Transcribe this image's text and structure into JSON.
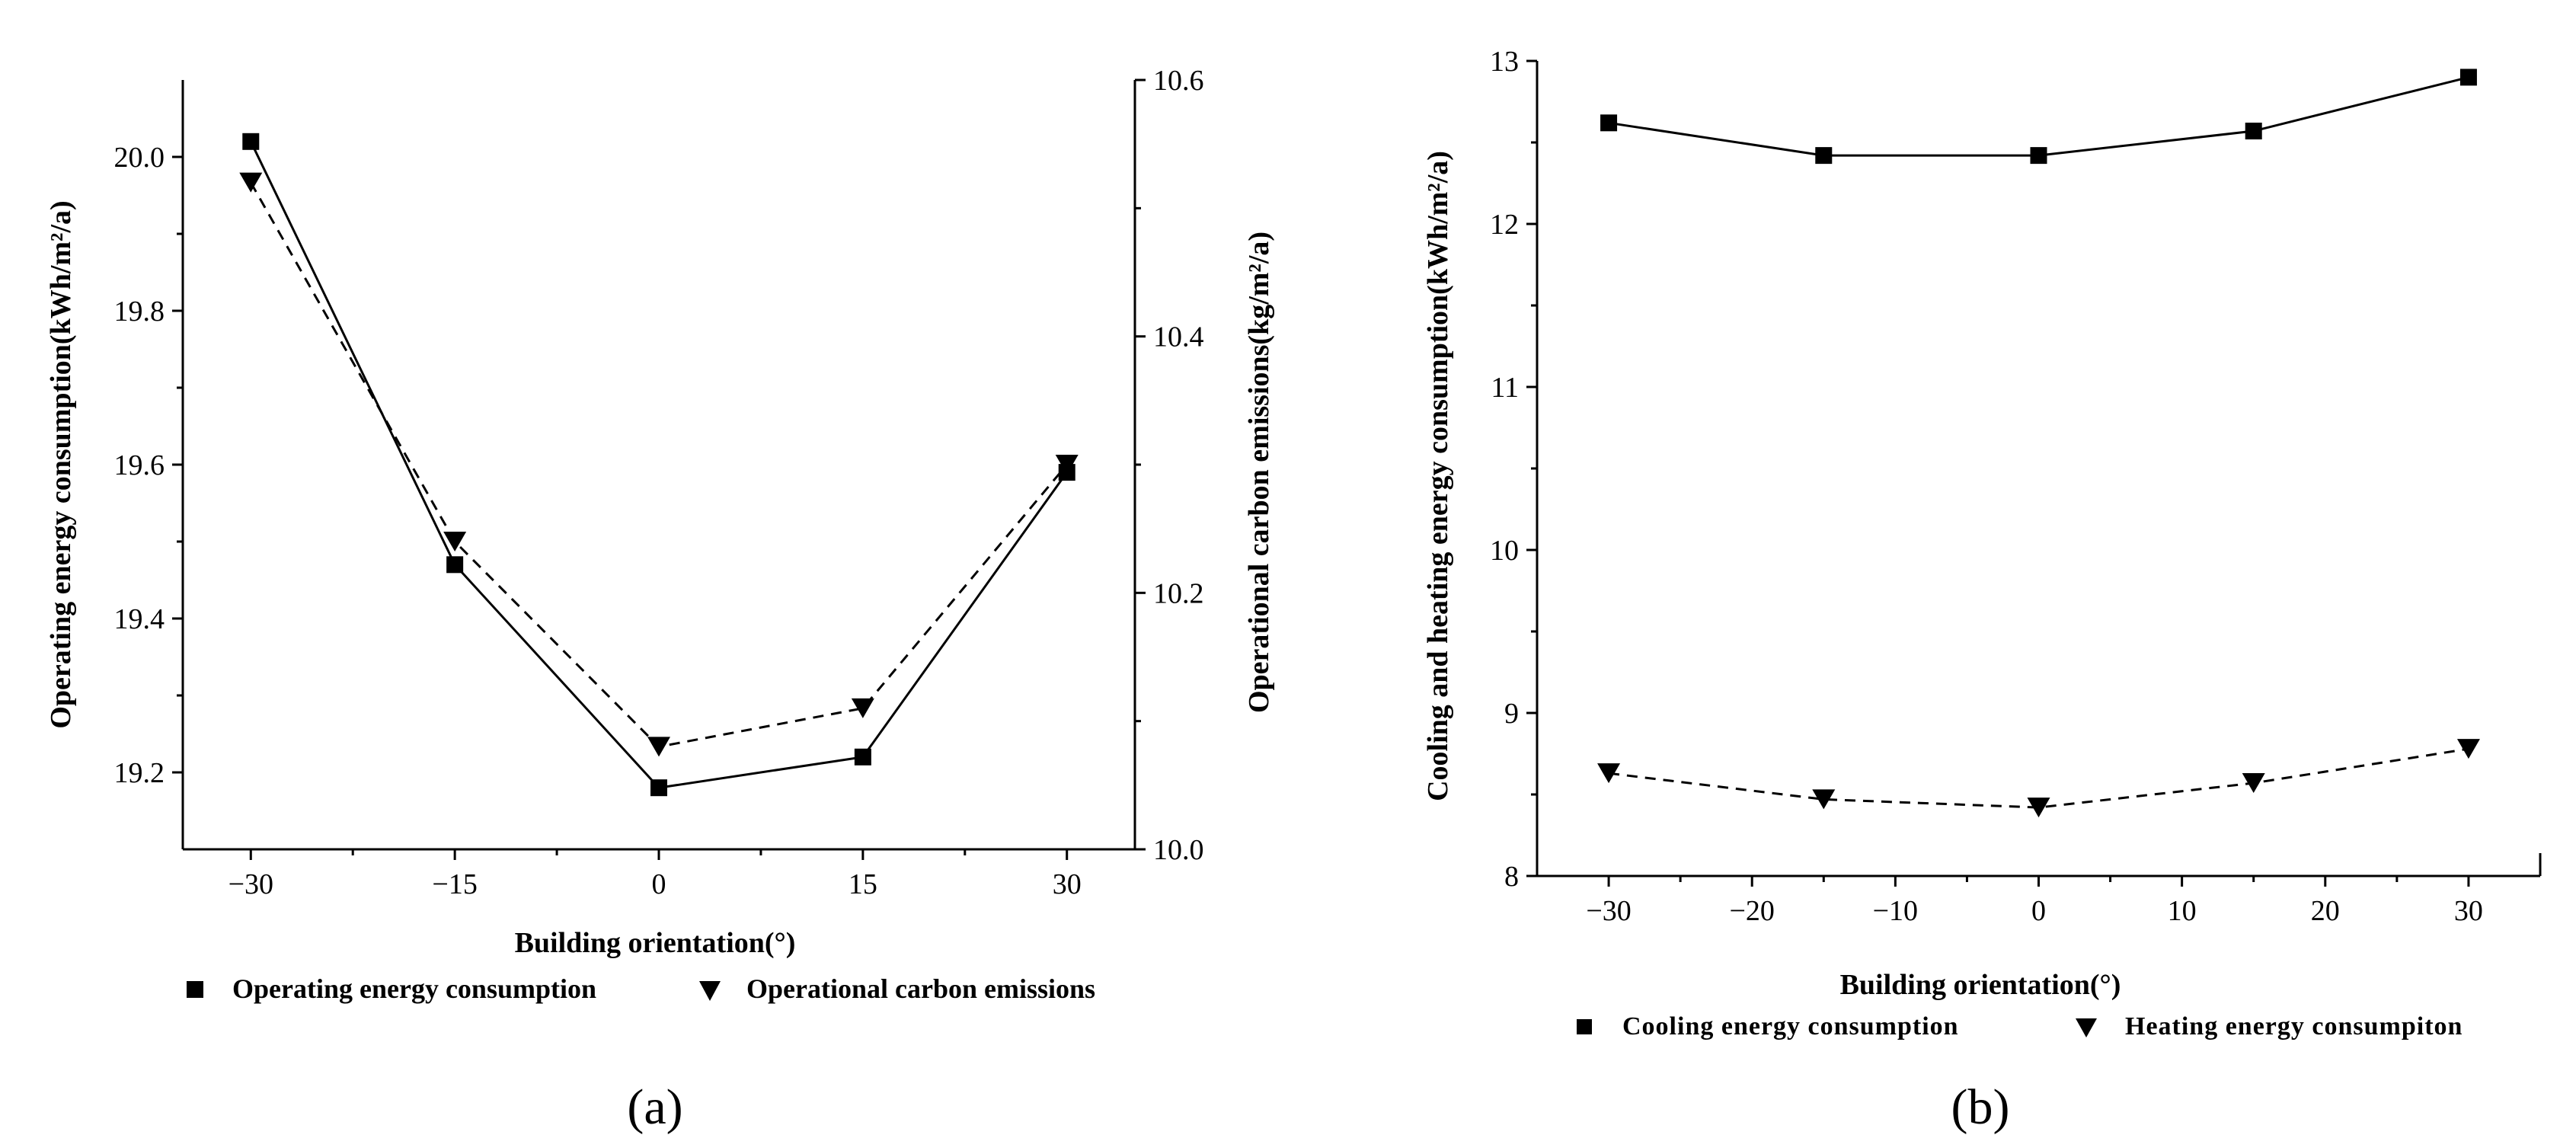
{
  "chart_data": [
    {
      "type": "line",
      "panel_label": "(a)",
      "x": [
        -30,
        -15,
        0,
        15,
        30
      ],
      "xticks": [
        -30,
        -15,
        0,
        15,
        30
      ],
      "xtick_labels": [
        "−30",
        "−15",
        "0",
        "15",
        "30"
      ],
      "xlim": [
        -35,
        35
      ],
      "xlabel": "Building orientation(°)",
      "ylabel": "Operating energy consumption(kWh/m²/a)",
      "ylim": [
        19.1,
        20.1
      ],
      "yticks": [
        19.2,
        19.4,
        19.6,
        19.8,
        20.0
      ],
      "ytick_labels": [
        "19.2",
        "19.4",
        "19.6",
        "19.8",
        "20.0"
      ],
      "y2label": "Operational carbon emissions(kg/m²/a)",
      "y2lim": [
        10.0,
        10.6
      ],
      "y2ticks": [
        10.0,
        10.2,
        10.4,
        10.6
      ],
      "y2tick_labels": [
        "10.0",
        "10.2",
        "10.4",
        "10.6"
      ],
      "series": [
        {
          "name": "Operating energy consumption",
          "axis": "left",
          "marker": "square",
          "line": "solid",
          "values": [
            20.02,
            19.47,
            19.18,
            19.22,
            19.59
          ]
        },
        {
          "name": "Operational carbon emissions",
          "axis": "right",
          "marker": "triangle-down",
          "line": "dashed",
          "values": [
            10.52,
            10.24,
            10.08,
            10.11,
            10.3
          ]
        }
      ],
      "legend": "bottom"
    },
    {
      "type": "line",
      "panel_label": "(b)",
      "x": [
        -30,
        -15,
        0,
        15,
        30
      ],
      "xticks": [
        -30,
        -20,
        -10,
        0,
        10,
        20,
        30
      ],
      "xtick_labels": [
        "−30",
        "−20",
        "−10",
        "0",
        "10",
        "20",
        "30"
      ],
      "xlim": [
        -35,
        35
      ],
      "xlabel": "Building orientation(°)",
      "ylabel": "Cooling and heating energy consumption(kWh/m²/a)",
      "ylim": [
        8,
        13
      ],
      "yticks": [
        8,
        9,
        10,
        11,
        12,
        13
      ],
      "ytick_labels": [
        "8",
        "9",
        "10",
        "11",
        "12",
        "13"
      ],
      "series": [
        {
          "name": "Cooling energy consumption",
          "marker": "square",
          "line": "solid",
          "values": [
            12.62,
            12.42,
            12.42,
            12.57,
            12.9
          ]
        },
        {
          "name": "Heating energy consumpiton",
          "marker": "triangle-down",
          "line": "dashed",
          "values": [
            8.63,
            8.47,
            8.42,
            8.57,
            8.78
          ]
        }
      ],
      "legend": "bottom"
    }
  ]
}
